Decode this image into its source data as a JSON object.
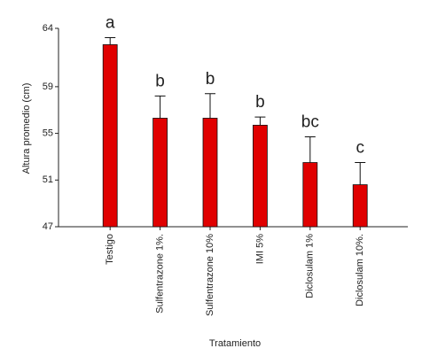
{
  "chart_data": {
    "type": "bar",
    "x_label": "Tratamiento",
    "y_label": "Altura promedio (cm)",
    "categories": [
      "Testigo",
      "Sulfentrazone 1%.",
      "Sulfentrazone 10%",
      "IMI 5%",
      "Diclosulam 1%",
      "Diclosulam 10%."
    ],
    "values": [
      62.6,
      56.3,
      56.3,
      55.7,
      52.5,
      50.6
    ],
    "errors": [
      0.6,
      1.9,
      2.1,
      0.7,
      2.2,
      1.9
    ],
    "letters": [
      "a",
      "b",
      "b",
      "b",
      "bc",
      "c"
    ],
    "color": "#e00000",
    "ylim": [
      47,
      64
    ],
    "yticks": [
      47,
      51,
      55,
      59,
      64
    ]
  }
}
